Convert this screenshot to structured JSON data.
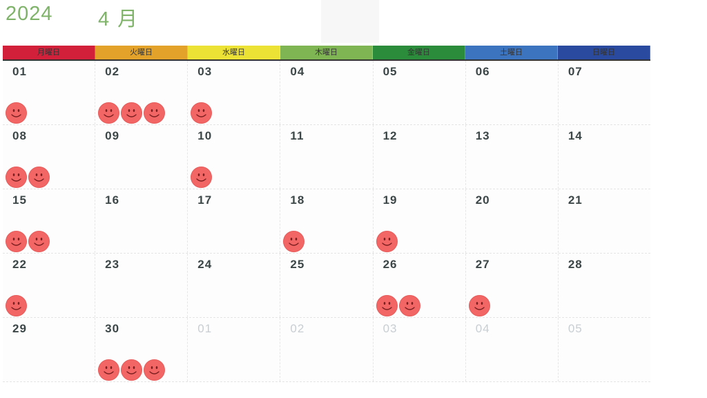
{
  "title": {
    "year": "2024",
    "month": "4 月"
  },
  "weekdays": [
    {
      "label": "月曜日",
      "color": "#d3203a"
    },
    {
      "label": "火曜日",
      "color": "#e3a32b"
    },
    {
      "label": "水曜日",
      "color": "#ece236"
    },
    {
      "label": "木曜日",
      "color": "#7fb552"
    },
    {
      "label": "金曜日",
      "color": "#2b8c3b"
    },
    {
      "label": "土曜日",
      "color": "#3d74c0"
    },
    {
      "label": "日曜日",
      "color": "#2a4aa0"
    }
  ],
  "weeks": [
    [
      {
        "day": "01",
        "stickers": 1,
        "other": false
      },
      {
        "day": "02",
        "stickers": 3,
        "other": false
      },
      {
        "day": "03",
        "stickers": 1,
        "other": false
      },
      {
        "day": "04",
        "stickers": 0,
        "other": false
      },
      {
        "day": "05",
        "stickers": 0,
        "other": false
      },
      {
        "day": "06",
        "stickers": 0,
        "other": false
      },
      {
        "day": "07",
        "stickers": 0,
        "other": false
      }
    ],
    [
      {
        "day": "08",
        "stickers": 2,
        "other": false
      },
      {
        "day": "09",
        "stickers": 0,
        "other": false
      },
      {
        "day": "10",
        "stickers": 1,
        "other": false
      },
      {
        "day": "11",
        "stickers": 0,
        "other": false
      },
      {
        "day": "12",
        "stickers": 0,
        "other": false
      },
      {
        "day": "13",
        "stickers": 0,
        "other": false
      },
      {
        "day": "14",
        "stickers": 0,
        "other": false
      }
    ],
    [
      {
        "day": "15",
        "stickers": 2,
        "other": false
      },
      {
        "day": "16",
        "stickers": 0,
        "other": false
      },
      {
        "day": "17",
        "stickers": 0,
        "other": false
      },
      {
        "day": "18",
        "stickers": 1,
        "other": false
      },
      {
        "day": "19",
        "stickers": 1,
        "other": false
      },
      {
        "day": "20",
        "stickers": 0,
        "other": false
      },
      {
        "day": "21",
        "stickers": 0,
        "other": false
      }
    ],
    [
      {
        "day": "22",
        "stickers": 1,
        "other": false
      },
      {
        "day": "23",
        "stickers": 0,
        "other": false
      },
      {
        "day": "24",
        "stickers": 0,
        "other": false
      },
      {
        "day": "25",
        "stickers": 0,
        "other": false
      },
      {
        "day": "26",
        "stickers": 2,
        "other": false
      },
      {
        "day": "27",
        "stickers": 1,
        "other": false
      },
      {
        "day": "28",
        "stickers": 0,
        "other": false
      }
    ],
    [
      {
        "day": "29",
        "stickers": 0,
        "other": false
      },
      {
        "day": "30",
        "stickers": 3,
        "other": false
      },
      {
        "day": "01",
        "stickers": 0,
        "other": true
      },
      {
        "day": "02",
        "stickers": 0,
        "other": true
      },
      {
        "day": "03",
        "stickers": 0,
        "other": true
      },
      {
        "day": "04",
        "stickers": 0,
        "other": true
      },
      {
        "day": "05",
        "stickers": 0,
        "other": true
      }
    ]
  ],
  "icons": {
    "sticker": "smiley-face-icon"
  },
  "colors": {
    "title": "#7fb36a",
    "sticker": "#f26666"
  }
}
